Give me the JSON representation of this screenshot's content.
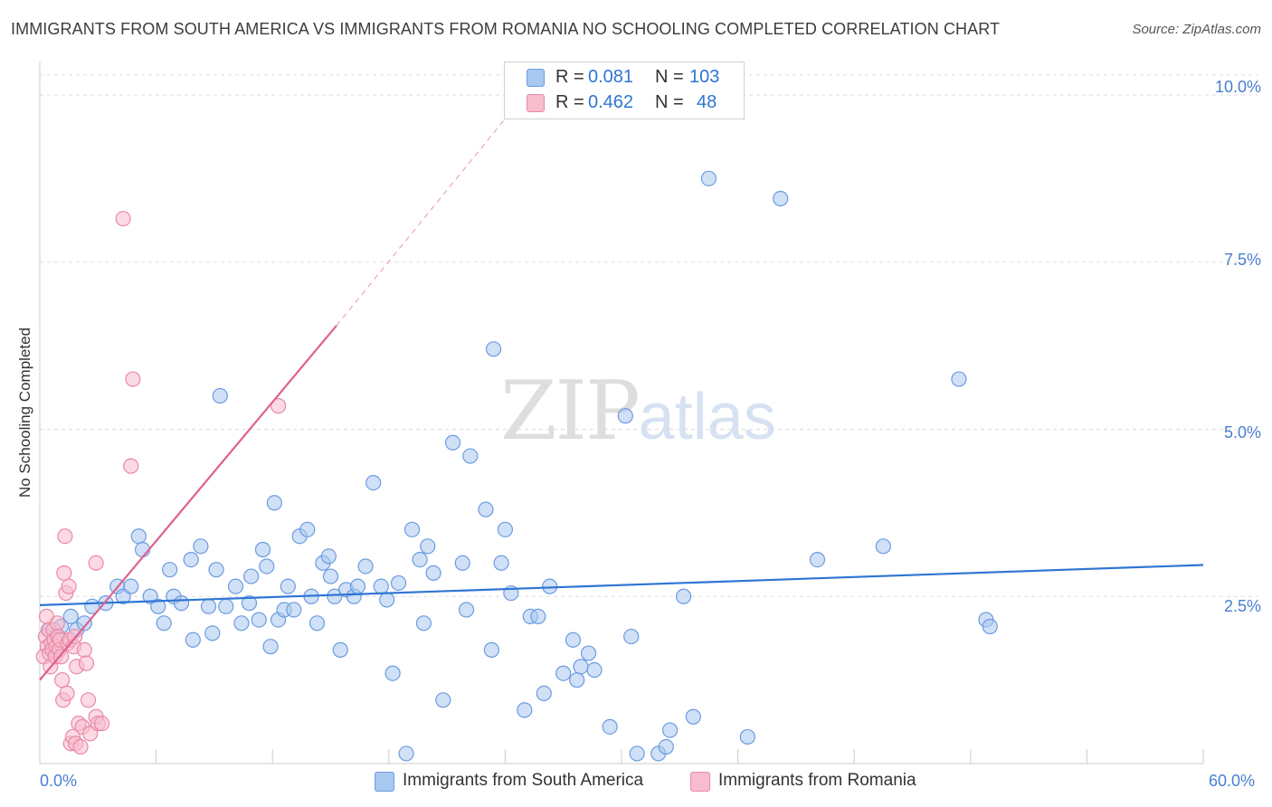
{
  "header": {
    "title": "IMMIGRANTS FROM SOUTH AMERICA VS IMMIGRANTS FROM ROMANIA NO SCHOOLING COMPLETED CORRELATION CHART",
    "source": "Source: ZipAtlas.com"
  },
  "watermark": {
    "zip": "ZIP",
    "atlas": "atlas"
  },
  "legend": {
    "r_label": "R =",
    "n_label": "N =",
    "south_america": {
      "r": "0.081",
      "n": "103"
    },
    "romania": {
      "r": "0.462",
      "n": "48"
    }
  },
  "colors": {
    "blue_fill": "#a9c8f0",
    "blue_stroke": "#6b9be0",
    "blue_line": "#2e75d4",
    "pink_fill": "#f7bccd",
    "pink_stroke": "#e88aa8",
    "pink_line": "#e0608c",
    "axis_text": "#4a7fd0",
    "grid": "#dddddd"
  },
  "chart_data": {
    "type": "scatter",
    "title": "IMMIGRANTS FROM SOUTH AMERICA VS IMMIGRANTS FROM ROMANIA NO SCHOOLING COMPLETED CORRELATION CHART",
    "xlabel": "",
    "ylabel": "No Schooling Completed",
    "xlim": [
      0,
      60
    ],
    "ylim": [
      0,
      10.5
    ],
    "x_tick_labels": [
      "0.0%",
      "60.0%"
    ],
    "y_ticks": [
      2.5,
      5.0,
      7.5,
      10.0
    ],
    "y_tick_labels": [
      "2.5%",
      "5.0%",
      "7.5%",
      "10.0%"
    ],
    "grid": true,
    "series": [
      {
        "name": "Immigrants from South America",
        "color": "#a9c8f0",
        "trend": {
          "x": [
            0,
            60
          ],
          "y": [
            2.37,
            2.97
          ],
          "style": "solid"
        },
        "points": [
          [
            0.5,
            2.0
          ],
          [
            0.9,
            1.9
          ],
          [
            1.1,
            2.05
          ],
          [
            1.6,
            2.2
          ],
          [
            1.9,
            2.0
          ],
          [
            2.3,
            2.1
          ],
          [
            2.7,
            2.35
          ],
          [
            3.4,
            2.4
          ],
          [
            4.0,
            2.65
          ],
          [
            4.3,
            2.5
          ],
          [
            4.7,
            2.65
          ],
          [
            5.1,
            3.4
          ],
          [
            5.3,
            3.2
          ],
          [
            5.7,
            2.5
          ],
          [
            6.1,
            2.35
          ],
          [
            6.4,
            2.1
          ],
          [
            6.7,
            2.9
          ],
          [
            6.9,
            2.5
          ],
          [
            7.3,
            2.4
          ],
          [
            7.8,
            3.05
          ],
          [
            7.9,
            1.85
          ],
          [
            8.3,
            3.25
          ],
          [
            8.7,
            2.35
          ],
          [
            9.1,
            2.9
          ],
          [
            9.3,
            5.5
          ],
          [
            9.6,
            2.35
          ],
          [
            10.1,
            2.65
          ],
          [
            10.4,
            2.1
          ],
          [
            10.8,
            2.4
          ],
          [
            11.3,
            2.15
          ],
          [
            11.5,
            3.2
          ],
          [
            11.7,
            2.95
          ],
          [
            11.9,
            1.75
          ],
          [
            12.3,
            2.15
          ],
          [
            12.6,
            2.3
          ],
          [
            12.8,
            2.65
          ],
          [
            13.1,
            2.3
          ],
          [
            13.4,
            3.4
          ],
          [
            13.8,
            3.5
          ],
          [
            14.0,
            2.5
          ],
          [
            14.3,
            2.1
          ],
          [
            14.6,
            3.0
          ],
          [
            14.9,
            3.1
          ],
          [
            15.2,
            2.5
          ],
          [
            15.5,
            1.7
          ],
          [
            15.8,
            2.6
          ],
          [
            16.2,
            2.5
          ],
          [
            16.4,
            2.65
          ],
          [
            16.8,
            2.95
          ],
          [
            17.2,
            4.2
          ],
          [
            17.6,
            2.65
          ],
          [
            17.9,
            2.45
          ],
          [
            18.2,
            1.35
          ],
          [
            18.5,
            2.7
          ],
          [
            18.9,
            0.15
          ],
          [
            19.2,
            3.5
          ],
          [
            19.6,
            3.05
          ],
          [
            20.0,
            3.25
          ],
          [
            20.3,
            2.85
          ],
          [
            20.8,
            0.95
          ],
          [
            21.3,
            4.8
          ],
          [
            21.8,
            3.0
          ],
          [
            22.0,
            2.3
          ],
          [
            22.2,
            4.6
          ],
          [
            23.0,
            3.8
          ],
          [
            23.3,
            1.7
          ],
          [
            23.8,
            3.0
          ],
          [
            24.0,
            3.5
          ],
          [
            24.3,
            2.55
          ],
          [
            25.0,
            0.8
          ],
          [
            25.3,
            2.2
          ],
          [
            25.7,
            2.2
          ],
          [
            26.0,
            1.05
          ],
          [
            26.3,
            2.65
          ],
          [
            27.0,
            1.35
          ],
          [
            27.5,
            1.85
          ],
          [
            27.7,
            1.25
          ],
          [
            27.9,
            1.45
          ],
          [
            28.3,
            1.65
          ],
          [
            28.6,
            1.4
          ],
          [
            29.4,
            0.55
          ],
          [
            30.2,
            5.2
          ],
          [
            30.8,
            0.15
          ],
          [
            31.9,
            0.15
          ],
          [
            32.3,
            0.25
          ],
          [
            32.5,
            0.5
          ],
          [
            33.7,
            0.7
          ],
          [
            34.5,
            8.75
          ],
          [
            36.5,
            0.4
          ],
          [
            38.2,
            8.45
          ],
          [
            40.1,
            3.05
          ],
          [
            43.5,
            3.25
          ],
          [
            47.4,
            5.75
          ],
          [
            48.8,
            2.15
          ],
          [
            49.0,
            2.05
          ],
          [
            23.4,
            6.2
          ],
          [
            12.1,
            3.9
          ],
          [
            15.0,
            2.8
          ],
          [
            8.9,
            1.95
          ],
          [
            19.8,
            2.1
          ],
          [
            10.9,
            2.8
          ],
          [
            30.5,
            1.9
          ],
          [
            33.2,
            2.5
          ]
        ]
      },
      {
        "name": "Immigrants from Romania",
        "color": "#f7bccd",
        "trend": {
          "x": [
            0,
            15.3
          ],
          "y": [
            1.25,
            6.55
          ],
          "style": "solid",
          "dashed_extension_to": [
            25.0,
            10.0
          ]
        },
        "points": [
          [
            0.2,
            1.6
          ],
          [
            0.3,
            1.9
          ],
          [
            0.35,
            2.2
          ],
          [
            0.4,
            1.75
          ],
          [
            0.45,
            2.0
          ],
          [
            0.5,
            1.65
          ],
          [
            0.55,
            1.45
          ],
          [
            0.6,
            1.8
          ],
          [
            0.65,
            1.7
          ],
          [
            0.7,
            2.0
          ],
          [
            0.75,
            1.85
          ],
          [
            0.8,
            1.6
          ],
          [
            0.85,
            1.75
          ],
          [
            0.9,
            2.1
          ],
          [
            0.95,
            1.9
          ],
          [
            1.0,
            1.7
          ],
          [
            1.05,
            1.85
          ],
          [
            1.1,
            1.6
          ],
          [
            1.15,
            1.25
          ],
          [
            1.2,
            0.95
          ],
          [
            1.25,
            2.85
          ],
          [
            1.3,
            3.4
          ],
          [
            1.35,
            2.55
          ],
          [
            1.4,
            1.05
          ],
          [
            1.45,
            1.8
          ],
          [
            1.5,
            2.65
          ],
          [
            1.55,
            1.85
          ],
          [
            1.6,
            0.3
          ],
          [
            1.7,
            0.4
          ],
          [
            1.75,
            1.75
          ],
          [
            1.8,
            1.9
          ],
          [
            1.85,
            0.3
          ],
          [
            1.9,
            1.45
          ],
          [
            2.0,
            0.6
          ],
          [
            2.1,
            0.25
          ],
          [
            2.2,
            0.55
          ],
          [
            2.3,
            1.7
          ],
          [
            2.4,
            1.5
          ],
          [
            2.5,
            0.95
          ],
          [
            2.6,
            0.45
          ],
          [
            2.9,
            0.7
          ],
          [
            3.0,
            0.6
          ],
          [
            3.2,
            0.6
          ],
          [
            4.3,
            8.15
          ],
          [
            4.7,
            4.45
          ],
          [
            4.8,
            5.75
          ],
          [
            12.3,
            5.35
          ],
          [
            2.9,
            3.0
          ]
        ]
      }
    ]
  },
  "bottom_legend": {
    "south_america": "Immigrants from South America",
    "romania": "Immigrants from Romania"
  }
}
